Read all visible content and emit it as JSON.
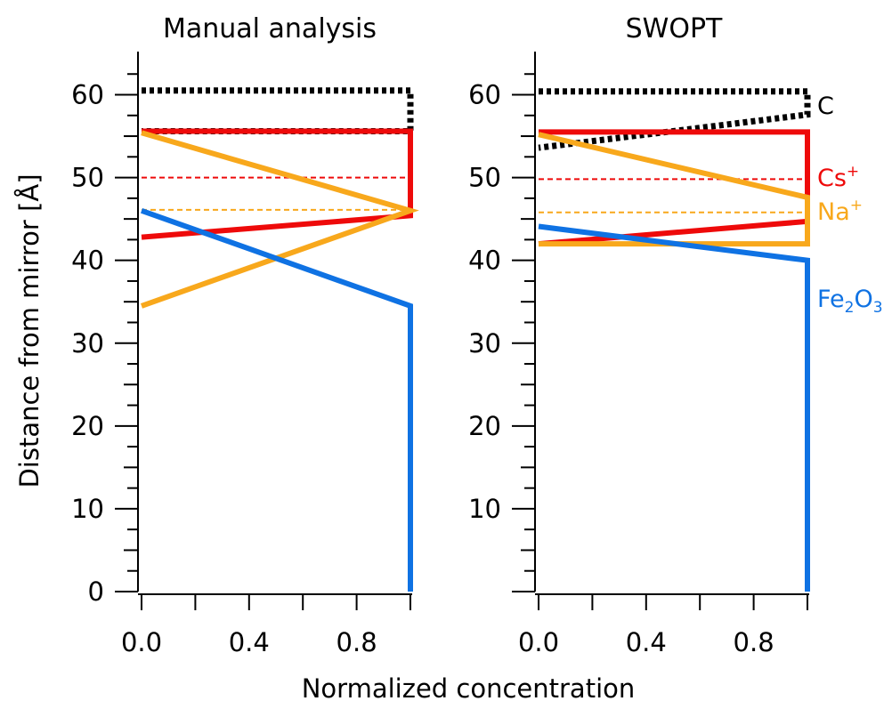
{
  "figure": {
    "ylabel": "Distance from mirror [Å]",
    "xlabel": "Normalized concentration"
  },
  "colors": {
    "C": "#000000",
    "Cs+": "#ee0a0a",
    "Na+": "#f8a81c",
    "Fe2O3": "#0f72e3"
  },
  "series_labels": [
    {
      "key": "C",
      "base": "C",
      "sup": "",
      "sub": "",
      "tail": ""
    },
    {
      "key": "Cs+",
      "base": "Cs",
      "sup": "+",
      "sub": "",
      "tail": ""
    },
    {
      "key": "Na+",
      "base": "Na",
      "sup": "+",
      "sub": "",
      "tail": ""
    },
    {
      "key": "Fe2O3",
      "base": "Fe",
      "sup": "",
      "sub": "2",
      "tail": "O",
      "sub2": "3"
    }
  ],
  "chart_data": [
    {
      "type": "line",
      "title": "Manual analysis",
      "xlabel": "Normalized concentration",
      "ylabel": "Distance from mirror [Å]",
      "xlim": [
        0,
        1.0
      ],
      "ylim": [
        0,
        65
      ],
      "x_ticks": [
        0.0,
        0.4,
        0.8
      ],
      "x_tick_labels": [
        "0.0",
        "0.4",
        "0.8"
      ],
      "y_ticks": [
        0,
        10,
        20,
        30,
        40,
        50,
        60
      ],
      "y_tick_labels": [
        "0",
        "10",
        "20",
        "30",
        "40",
        "50",
        "60"
      ],
      "grid": false,
      "series": [
        {
          "key": "C",
          "style": "dotted",
          "points": [
            [
              0,
              60.5
            ],
            [
              1.0,
              60.5
            ],
            [
              1.0,
              55.6
            ],
            [
              0,
              55.6
            ]
          ]
        },
        {
          "key": "Cs+",
          "style": "solid",
          "points": [
            [
              0,
              55.6
            ],
            [
              1.0,
              55.6
            ],
            [
              1.0,
              45.4
            ],
            [
              0,
              42.8
            ]
          ]
        },
        {
          "key": "Cs+",
          "style": "dashed",
          "points": [
            [
              0,
              50
            ],
            [
              1.0,
              50
            ]
          ]
        },
        {
          "key": "Na+",
          "style": "solid",
          "points": [
            [
              0,
              55.4
            ],
            [
              1.0,
              46.0
            ],
            [
              0,
              34.5
            ]
          ]
        },
        {
          "key": "Na+",
          "style": "dashed",
          "points": [
            [
              0,
              46.1
            ],
            [
              1.0,
              46.1
            ]
          ]
        },
        {
          "key": "Fe2O3",
          "style": "solid",
          "points": [
            [
              0,
              46.0
            ],
            [
              1.0,
              34.5
            ],
            [
              1.0,
              0
            ]
          ]
        }
      ]
    },
    {
      "type": "line",
      "title": "SWOPT",
      "xlabel": "Normalized concentration",
      "ylabel": "",
      "xlim": [
        0,
        1.0
      ],
      "ylim": [
        0,
        65
      ],
      "x_ticks": [
        0.0,
        0.4,
        0.8
      ],
      "x_tick_labels": [
        "0.0",
        "0.4",
        "0.8"
      ],
      "y_ticks": [
        10,
        20,
        30,
        40,
        50,
        60
      ],
      "y_tick_labels": [
        "10",
        "20",
        "30",
        "40",
        "50",
        "60"
      ],
      "grid": false,
      "series": [
        {
          "key": "C",
          "style": "dotted",
          "points": [
            [
              0,
              60.4
            ],
            [
              1.0,
              60.4
            ],
            [
              1.0,
              57.6
            ],
            [
              0,
              53.6
            ]
          ]
        },
        {
          "key": "Cs+",
          "style": "solid",
          "points": [
            [
              0,
              55.5
            ],
            [
              1.0,
              55.5
            ],
            [
              1.0,
              44.7
            ],
            [
              0,
              42.0
            ]
          ]
        },
        {
          "key": "Cs+",
          "style": "dashed",
          "points": [
            [
              0,
              49.8
            ],
            [
              1.0,
              49.8
            ]
          ]
        },
        {
          "key": "Na+",
          "style": "solid",
          "points": [
            [
              0,
              55.2
            ],
            [
              1.0,
              47.6
            ],
            [
              1.0,
              42.0
            ],
            [
              0,
              42.0
            ]
          ]
        },
        {
          "key": "Na+",
          "style": "dashed",
          "points": [
            [
              0,
              45.8
            ],
            [
              1.0,
              45.8
            ]
          ]
        },
        {
          "key": "Fe2O3",
          "style": "solid",
          "points": [
            [
              0,
              44.1
            ],
            [
              1.0,
              40.0
            ],
            [
              1.0,
              0
            ]
          ]
        }
      ]
    }
  ]
}
